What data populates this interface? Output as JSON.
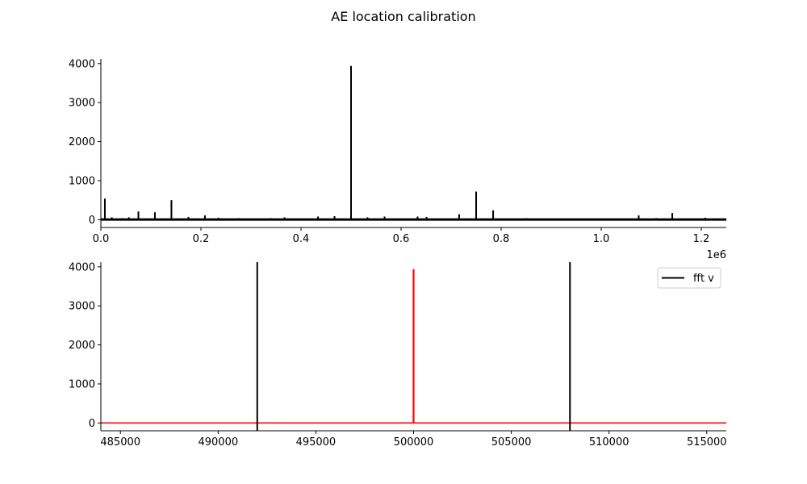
{
  "title": "AE location calibration",
  "colors": {
    "axis": "#000000",
    "fft": "#000000",
    "zoom_signal": "#ff0000",
    "marker": "#000000",
    "background": "#ffffff"
  },
  "chart_data": [
    {
      "type": "line",
      "xlim": [
        0,
        1250000
      ],
      "ylim": [
        -200,
        4120
      ],
      "x_offset_label": "1e6",
      "x_ticks": [
        0,
        200000,
        400000,
        600000,
        800000,
        1000000,
        1200000
      ],
      "x_tick_labels": [
        "0.0",
        "0.2",
        "0.4",
        "0.6",
        "0.8",
        "1.0",
        "1.2"
      ],
      "y_ticks": [
        0,
        1000,
        2000,
        3000,
        4000
      ],
      "y_tick_labels": [
        "0",
        "1000",
        "2000",
        "3000",
        "4000"
      ],
      "grid": false,
      "series": [
        {
          "color": "#000000",
          "baseline": 5,
          "peaks": [
            {
              "x": 8000,
              "y": 540
            },
            {
              "x": 22000,
              "y": 60
            },
            {
              "x": 42000,
              "y": 40
            },
            {
              "x": 56000,
              "y": 60
            },
            {
              "x": 75000,
              "y": 210
            },
            {
              "x": 108000,
              "y": 190
            },
            {
              "x": 141000,
              "y": 500
            },
            {
              "x": 175000,
              "y": 70
            },
            {
              "x": 208000,
              "y": 110
            },
            {
              "x": 235000,
              "y": 50
            },
            {
              "x": 275000,
              "y": 40
            },
            {
              "x": 340000,
              "y": 40
            },
            {
              "x": 367000,
              "y": 60
            },
            {
              "x": 434000,
              "y": 80
            },
            {
              "x": 467000,
              "y": 90
            },
            {
              "x": 500000,
              "y": 3940
            },
            {
              "x": 533000,
              "y": 60
            },
            {
              "x": 567000,
              "y": 80
            },
            {
              "x": 633000,
              "y": 80
            },
            {
              "x": 651000,
              "y": 70
            },
            {
              "x": 716000,
              "y": 140
            },
            {
              "x": 750000,
              "y": 720
            },
            {
              "x": 784000,
              "y": 240
            },
            {
              "x": 850000,
              "y": 40
            },
            {
              "x": 1075000,
              "y": 110
            },
            {
              "x": 1110000,
              "y": 40
            },
            {
              "x": 1142000,
              "y": 170
            },
            {
              "x": 1208000,
              "y": 50
            }
          ]
        }
      ]
    },
    {
      "type": "line",
      "xlim": [
        484000,
        516000
      ],
      "ylim": [
        -200,
        4120
      ],
      "x_ticks": [
        485000,
        490000,
        495000,
        500000,
        505000,
        510000,
        515000
      ],
      "x_tick_labels": [
        "485000",
        "490000",
        "495000",
        "500000",
        "505000",
        "510000",
        "515000"
      ],
      "y_ticks": [
        0,
        1000,
        2000,
        3000,
        4000
      ],
      "y_tick_labels": [
        "0",
        "1000",
        "2000",
        "3000",
        "4000"
      ],
      "grid": false,
      "legend": {
        "location": "top-right",
        "entries": [
          {
            "label": "fft v",
            "color": "#000000"
          }
        ]
      },
      "vlines": [
        492000,
        508000
      ],
      "series": [
        {
          "name": "fft v",
          "color": "#ff0000",
          "baseline": 0,
          "peaks": [
            {
              "x": 500000,
              "y": 3940
            }
          ]
        }
      ]
    }
  ]
}
